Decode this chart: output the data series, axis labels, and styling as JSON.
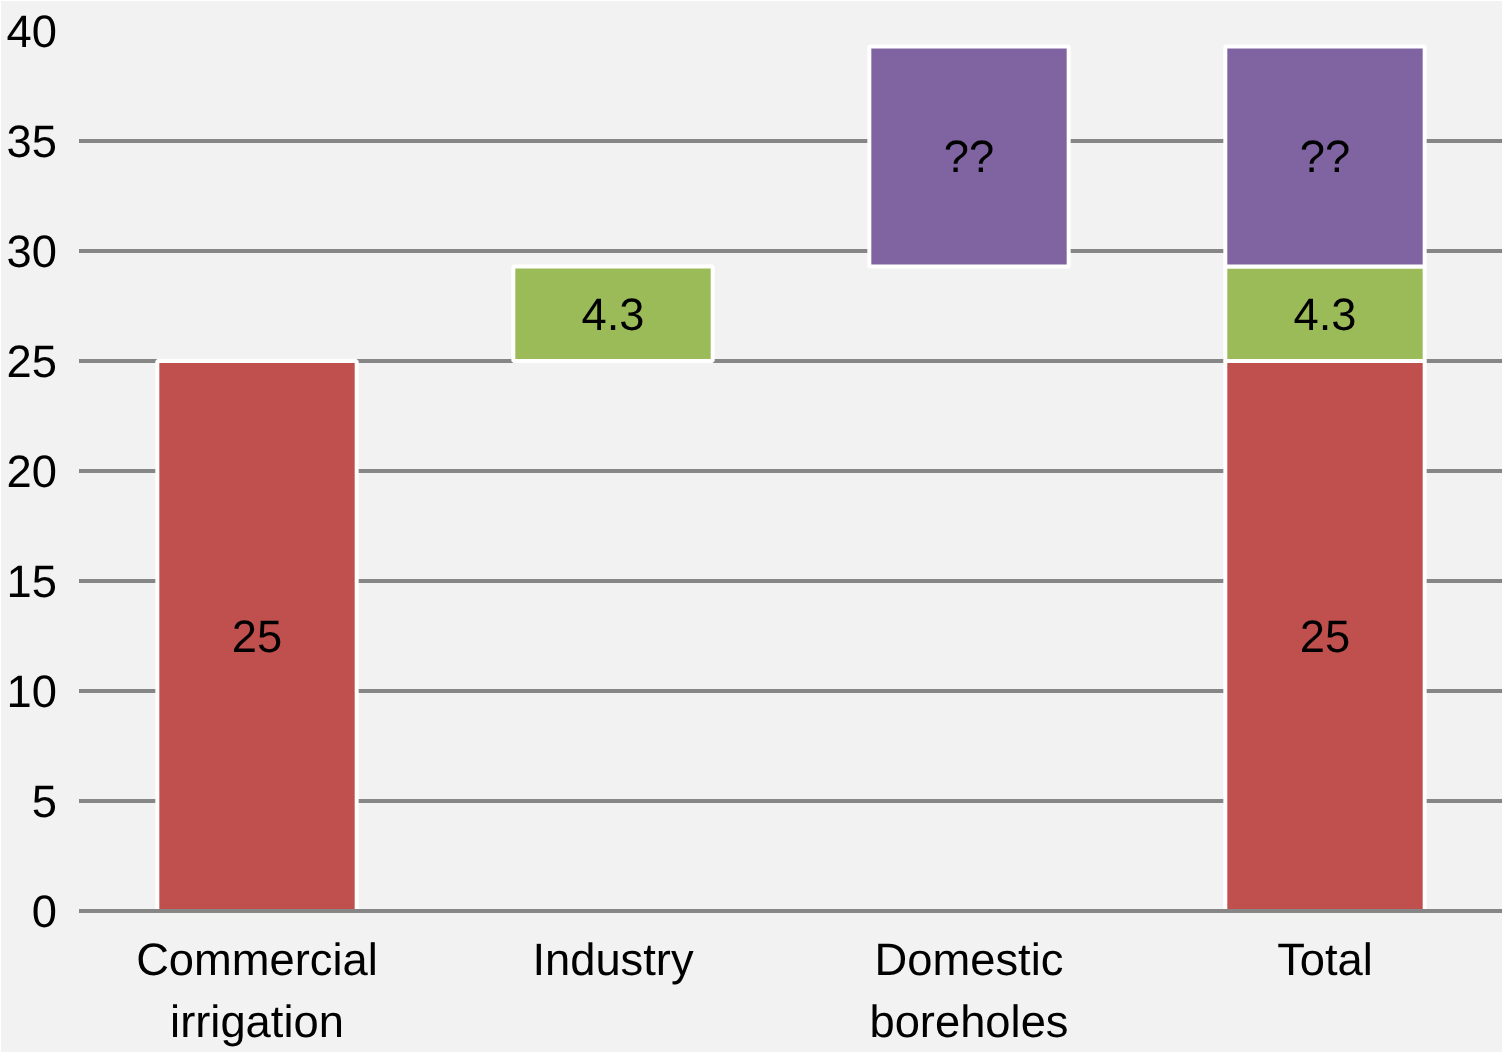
{
  "chart_data": {
    "type": "bar",
    "categories": [
      "Commercial irrigation",
      "Industry",
      "Domestic boreholes",
      "Total"
    ],
    "series": [
      {
        "color": "#c0504d",
        "base": [
          0,
          null,
          null,
          0
        ],
        "values": [
          25,
          null,
          null,
          25
        ],
        "value_labels": [
          "25",
          null,
          null,
          "25"
        ]
      },
      {
        "color": "#9bbb59",
        "base": [
          null,
          25,
          null,
          25
        ],
        "values": [
          null,
          4.3,
          null,
          4.3
        ],
        "value_labels": [
          null,
          "4.3",
          null,
          "4.3"
        ]
      },
      {
        "color": "#8064a2",
        "base": [
          null,
          null,
          29.3,
          29.3
        ],
        "values": [
          null,
          null,
          10,
          10
        ],
        "value_labels": [
          null,
          null,
          "??",
          "??"
        ]
      }
    ],
    "ylim": [
      0,
      40
    ],
    "yticks": [
      0,
      5,
      10,
      15,
      20,
      25,
      30,
      35,
      40
    ],
    "grid": "y"
  }
}
